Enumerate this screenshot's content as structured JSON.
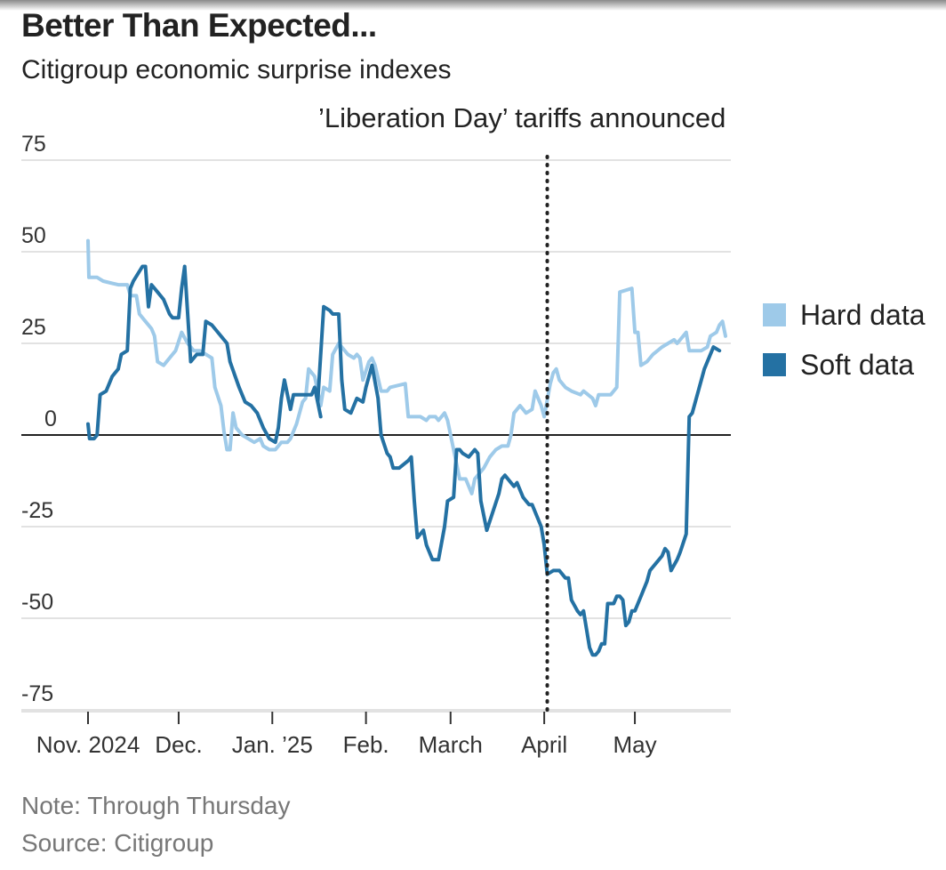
{
  "header": {
    "title": "Better Than Expected...",
    "subtitle": "Citigroup economic surprise indexes",
    "annotation": "’Liberation Day’ tariffs announced"
  },
  "legend": [
    {
      "label": "Hard data",
      "color": "#9ecae9"
    },
    {
      "label": "Soft data",
      "color": "#2471a3"
    }
  ],
  "footer": {
    "note": "Note: Through Thursday",
    "source": "Source: Citigroup"
  },
  "chart_data": {
    "type": "line",
    "title": "Better Than Expected...",
    "subtitle": "Citigroup economic surprise indexes",
    "xlabel": "",
    "ylabel": "",
    "x_unit": "days since Nov. 1, 2024",
    "xlim": [
      0,
      211
    ],
    "ylim": [
      -75,
      75
    ],
    "yticks": [
      75,
      50,
      25,
      0,
      -25,
      -50,
      -75
    ],
    "ytick_labels": [
      "75",
      "50",
      "25",
      "0",
      "-25",
      "-50",
      "-75"
    ],
    "xticks": [
      {
        "x": 0,
        "label": "Nov. 2024"
      },
      {
        "x": 30,
        "label": "Dec."
      },
      {
        "x": 61,
        "label": "Jan. ’25"
      },
      {
        "x": 92,
        "label": "Feb."
      },
      {
        "x": 120,
        "label": "March"
      },
      {
        "x": 151,
        "label": "April"
      },
      {
        "x": 181,
        "label": "May"
      }
    ],
    "grid": true,
    "zero_line": true,
    "event_line": {
      "x": 152,
      "label": "’Liberation Day’ tariffs announced"
    },
    "legend_position": "right",
    "series": [
      {
        "name": "Hard data",
        "color": "#9ecae9",
        "points": [
          [
            0,
            53
          ],
          [
            0.3,
            43
          ],
          [
            3,
            43
          ],
          [
            5,
            42
          ],
          [
            10,
            41
          ],
          [
            13,
            41
          ],
          [
            14,
            38
          ],
          [
            16,
            38
          ],
          [
            17,
            33
          ],
          [
            19,
            31
          ],
          [
            21,
            29
          ],
          [
            22,
            27
          ],
          [
            23,
            20
          ],
          [
            25,
            19
          ],
          [
            27,
            21
          ],
          [
            29,
            23
          ],
          [
            31,
            28
          ],
          [
            33,
            25
          ],
          [
            35,
            23
          ],
          [
            37,
            23
          ],
          [
            41,
            21
          ],
          [
            42,
            13
          ],
          [
            44,
            8
          ],
          [
            45,
            1
          ],
          [
            46,
            -4
          ],
          [
            47,
            -4
          ],
          [
            48,
            6
          ],
          [
            49,
            2
          ],
          [
            51,
            0
          ],
          [
            55,
            -2
          ],
          [
            57,
            -1
          ],
          [
            58,
            -3
          ],
          [
            60,
            -4
          ],
          [
            62,
            -4
          ],
          [
            64,
            -2
          ],
          [
            66,
            -2
          ],
          [
            67,
            -1
          ],
          [
            69,
            3
          ],
          [
            71,
            9
          ],
          [
            72,
            10
          ],
          [
            73,
            18
          ],
          [
            75,
            16
          ],
          [
            77,
            8
          ],
          [
            78,
            13
          ],
          [
            80,
            12
          ],
          [
            81,
            22
          ],
          [
            83,
            25
          ],
          [
            84,
            24
          ],
          [
            86,
            22
          ],
          [
            88,
            21
          ],
          [
            89,
            22
          ],
          [
            90,
            21
          ],
          [
            91,
            15
          ],
          [
            93,
            20
          ],
          [
            94,
            21
          ],
          [
            95,
            19
          ],
          [
            97,
            12
          ],
          [
            99,
            12
          ],
          [
            100,
            13
          ],
          [
            105,
            14
          ],
          [
            106,
            5
          ],
          [
            108,
            5
          ],
          [
            110,
            5
          ],
          [
            112,
            4
          ],
          [
            113,
            5
          ],
          [
            115,
            5
          ],
          [
            116,
            4
          ],
          [
            118,
            6
          ],
          [
            119,
            4
          ],
          [
            121,
            -4
          ],
          [
            123,
            -12
          ],
          [
            125,
            -12
          ],
          [
            127,
            -16
          ],
          [
            128,
            -12
          ],
          [
            129,
            -11
          ],
          [
            131,
            -9
          ],
          [
            133,
            -6
          ],
          [
            135,
            -4
          ],
          [
            137,
            -3
          ],
          [
            139,
            -3
          ],
          [
            140,
            0
          ],
          [
            141,
            6
          ],
          [
            143,
            8
          ],
          [
            145,
            6
          ],
          [
            147,
            7
          ],
          [
            148,
            12
          ],
          [
            149,
            10
          ],
          [
            150,
            8
          ],
          [
            151,
            5
          ],
          [
            153,
            14
          ],
          [
            154,
            17
          ],
          [
            155,
            18
          ],
          [
            156,
            15
          ],
          [
            158,
            13
          ],
          [
            160,
            12
          ],
          [
            163,
            11
          ],
          [
            164,
            12
          ],
          [
            167,
            10
          ],
          [
            168,
            8
          ],
          [
            169,
            11
          ],
          [
            173,
            11
          ],
          [
            175,
            13
          ],
          [
            176,
            39
          ],
          [
            180,
            40
          ],
          [
            181,
            28
          ],
          [
            182,
            28
          ],
          [
            183,
            19
          ],
          [
            185,
            20
          ],
          [
            187,
            22
          ],
          [
            190,
            24
          ],
          [
            192,
            25
          ],
          [
            194,
            26
          ],
          [
            195,
            25
          ],
          [
            197,
            27
          ],
          [
            198,
            28
          ],
          [
            199,
            23
          ],
          [
            203,
            23
          ],
          [
            205,
            24
          ],
          [
            206,
            27
          ],
          [
            208,
            28
          ],
          [
            209,
            30
          ],
          [
            210,
            31
          ],
          [
            211,
            27
          ]
        ]
      },
      {
        "name": "Soft data",
        "color": "#2471a3",
        "points": [
          [
            0,
            3
          ],
          [
            0.5,
            -1
          ],
          [
            2,
            -1
          ],
          [
            3,
            0
          ],
          [
            4,
            11
          ],
          [
            6,
            12
          ],
          [
            8,
            16
          ],
          [
            10,
            18
          ],
          [
            11,
            22
          ],
          [
            13,
            23
          ],
          [
            14,
            40
          ],
          [
            15,
            42
          ],
          [
            18,
            46
          ],
          [
            19,
            46
          ],
          [
            20,
            35
          ],
          [
            21,
            41
          ],
          [
            23,
            39
          ],
          [
            25,
            37
          ],
          [
            27,
            33
          ],
          [
            28,
            32
          ],
          [
            30,
            32
          ],
          [
            31,
            40
          ],
          [
            32,
            46
          ],
          [
            34,
            20
          ],
          [
            35,
            21
          ],
          [
            36,
            22
          ],
          [
            38,
            22
          ],
          [
            39,
            31
          ],
          [
            41,
            30
          ],
          [
            43,
            28
          ],
          [
            44,
            27
          ],
          [
            46,
            25
          ],
          [
            47,
            20
          ],
          [
            50,
            13
          ],
          [
            52,
            9
          ],
          [
            54,
            8
          ],
          [
            56,
            6
          ],
          [
            58,
            2
          ],
          [
            60,
            -1
          ],
          [
            62,
            -2
          ],
          [
            63,
            2
          ],
          [
            64,
            10
          ],
          [
            65,
            15
          ],
          [
            67,
            7
          ],
          [
            68,
            11
          ],
          [
            70,
            11
          ],
          [
            71,
            11
          ],
          [
            72,
            11
          ],
          [
            74,
            11
          ],
          [
            75,
            13
          ],
          [
            77,
            5
          ],
          [
            76,
            9
          ],
          [
            78,
            35
          ],
          [
            80,
            34
          ],
          [
            81,
            33
          ],
          [
            83,
            33
          ],
          [
            84,
            15
          ],
          [
            85,
            7
          ],
          [
            87,
            6
          ],
          [
            89,
            10
          ],
          [
            91,
            9
          ],
          [
            92,
            13
          ],
          [
            94,
            19
          ],
          [
            96,
            10
          ],
          [
            97,
            0
          ],
          [
            99,
            -5
          ],
          [
            100,
            -6
          ],
          [
            101,
            -9
          ],
          [
            103,
            -9
          ],
          [
            106,
            -7
          ],
          [
            107,
            -6
          ],
          [
            108,
            -18
          ],
          [
            109,
            -28
          ],
          [
            111,
            -26
          ],
          [
            112,
            -30
          ],
          [
            114,
            -34
          ],
          [
            116,
            -34
          ],
          [
            118,
            -25
          ],
          [
            119,
            -18
          ],
          [
            121,
            -17
          ],
          [
            122,
            -4
          ],
          [
            123,
            -4
          ],
          [
            124,
            -5
          ],
          [
            126,
            -6
          ],
          [
            128,
            -4
          ],
          [
            129,
            -5
          ],
          [
            130,
            -18
          ],
          [
            132,
            -26
          ],
          [
            134,
            -21
          ],
          [
            136,
            -16
          ],
          [
            137,
            -12
          ],
          [
            138,
            -11
          ],
          [
            140,
            -13
          ],
          [
            141,
            -14
          ],
          [
            142,
            -13
          ],
          [
            144,
            -17
          ],
          [
            145,
            -18
          ],
          [
            146,
            -19
          ],
          [
            147,
            -19
          ],
          [
            148,
            -21
          ],
          [
            150,
            -25
          ],
          [
            151,
            -30
          ],
          [
            152,
            -38
          ],
          [
            154,
            -37
          ],
          [
            156,
            -37
          ],
          [
            158,
            -39
          ],
          [
            159,
            -39
          ],
          [
            160,
            -45
          ],
          [
            162,
            -48
          ],
          [
            163,
            -49
          ],
          [
            164,
            -48
          ],
          [
            165,
            -53
          ],
          [
            166,
            -58
          ],
          [
            167,
            -60
          ],
          [
            168,
            -60
          ],
          [
            169,
            -59
          ],
          [
            170,
            -57
          ],
          [
            171,
            -57
          ],
          [
            172,
            -46
          ],
          [
            173,
            -46
          ],
          [
            174,
            -46
          ],
          [
            175,
            -44
          ],
          [
            176,
            -44
          ],
          [
            177,
            -45
          ],
          [
            178,
            -52
          ],
          [
            179,
            -51
          ],
          [
            180,
            -48
          ],
          [
            181,
            -48
          ],
          [
            183,
            -44
          ],
          [
            185,
            -40
          ],
          [
            186,
            -37
          ],
          [
            188,
            -35
          ],
          [
            190,
            -33
          ],
          [
            191,
            -31
          ],
          [
            192,
            -32
          ],
          [
            193,
            -37
          ],
          [
            195,
            -34
          ],
          [
            196,
            -32
          ],
          [
            198,
            -27
          ],
          [
            199,
            5
          ],
          [
            200,
            6
          ],
          [
            202,
            12
          ],
          [
            204,
            18
          ],
          [
            206,
            22
          ],
          [
            207,
            24
          ],
          [
            209,
            23
          ]
        ]
      }
    ]
  }
}
